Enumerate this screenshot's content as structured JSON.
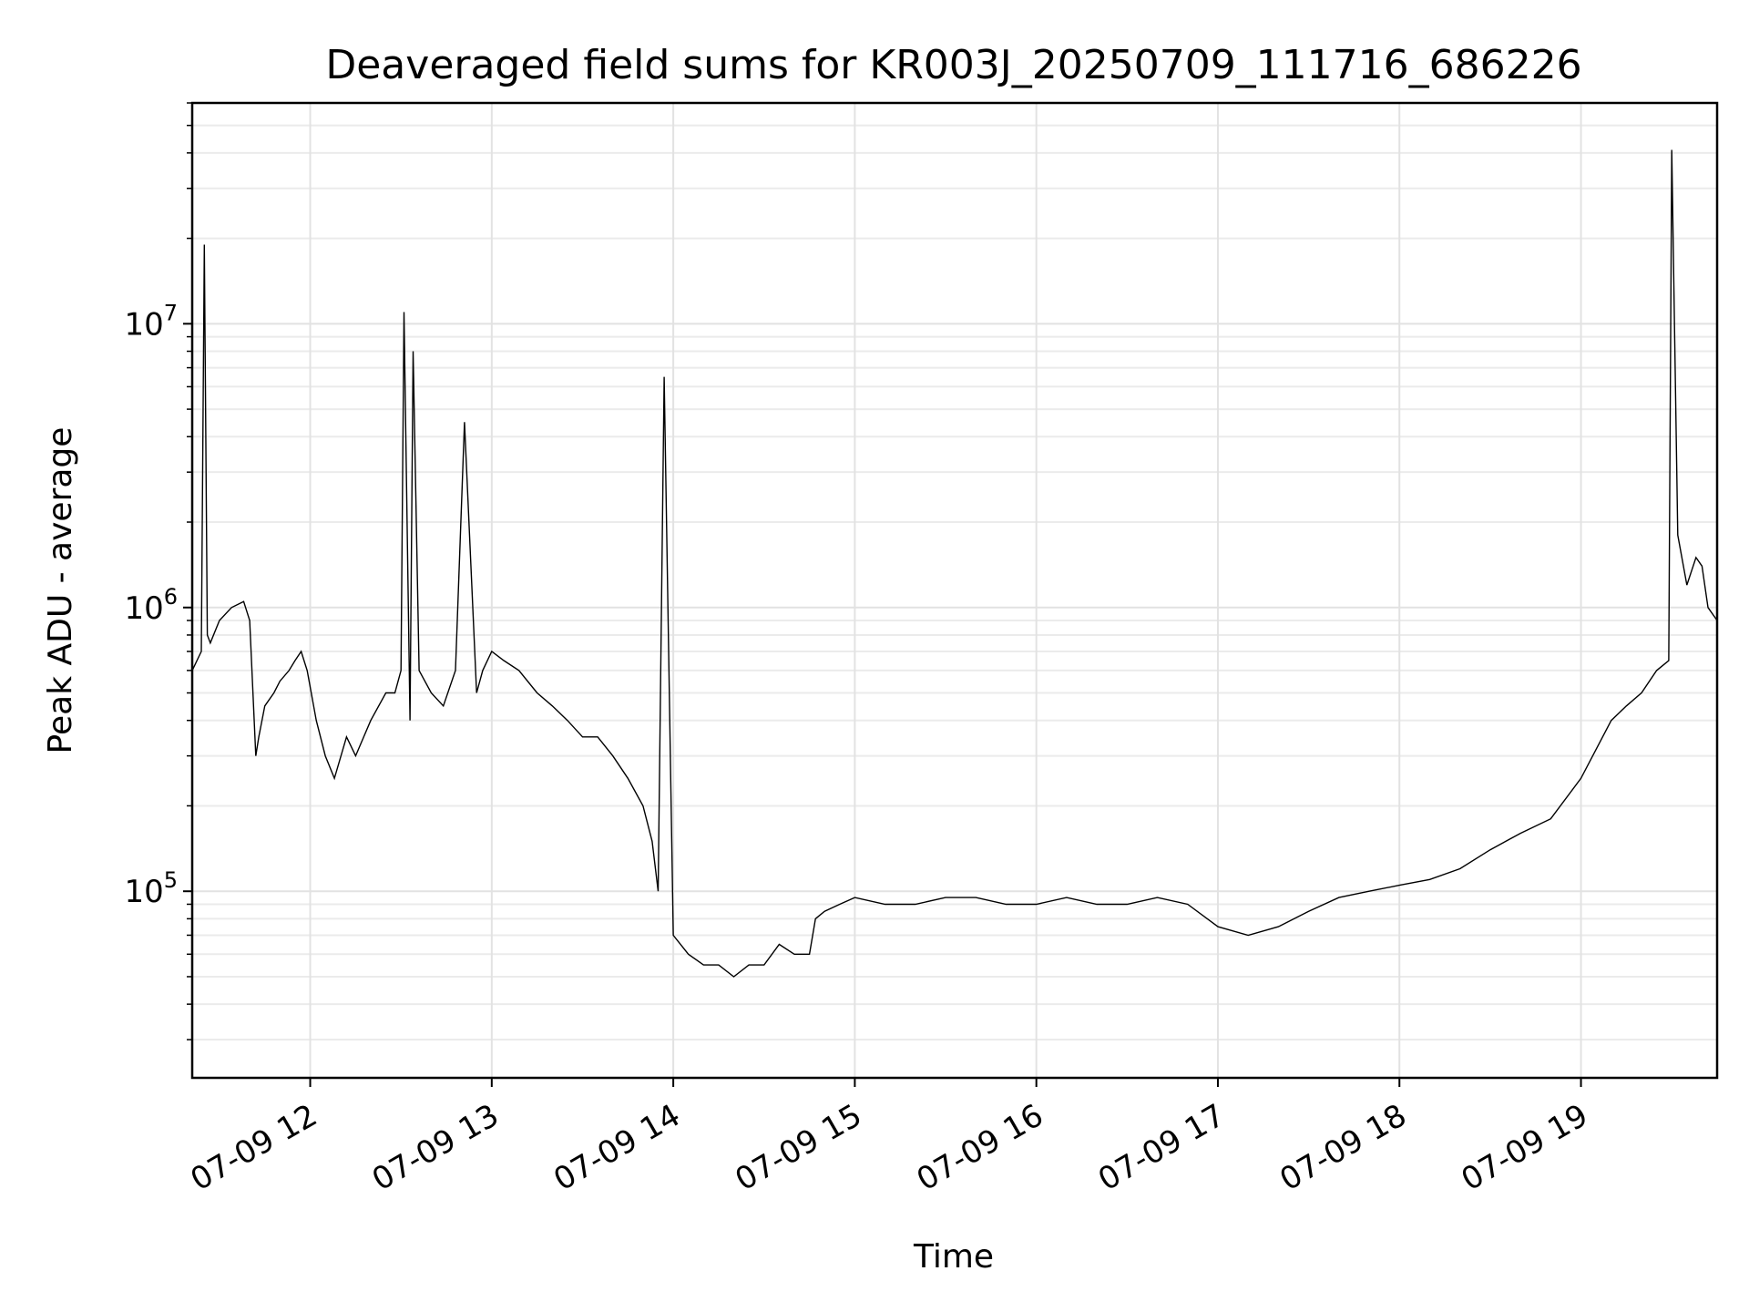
{
  "chart_data": {
    "type": "line",
    "title": "Deaveraged field sums for KR003J_20250709_111716_686226",
    "xlabel": "Time",
    "ylabel": "Peak ADU - average",
    "yscale": "log",
    "xlim": [
      "07-09 11:21",
      "07-09 19:45"
    ],
    "ylim": [
      22000,
      60000000
    ],
    "grid": true,
    "x_ticks": [
      {
        "value": "07-09 12:00",
        "label": "07-09 12"
      },
      {
        "value": "07-09 13:00",
        "label": "07-09 13"
      },
      {
        "value": "07-09 14:00",
        "label": "07-09 14"
      },
      {
        "value": "07-09 15:00",
        "label": "07-09 15"
      },
      {
        "value": "07-09 16:00",
        "label": "07-09 16"
      },
      {
        "value": "07-09 17:00",
        "label": "07-09 17"
      },
      {
        "value": "07-09 18:00",
        "label": "07-09 18"
      },
      {
        "value": "07-09 19:00",
        "label": "07-09 19"
      }
    ],
    "y_ticks": [
      {
        "value": 100000,
        "base": "10",
        "exp": "5"
      },
      {
        "value": 1000000,
        "base": "10",
        "exp": "6"
      },
      {
        "value": 10000000,
        "base": "10",
        "exp": "7"
      }
    ],
    "series_color": "#000000",
    "series": [
      {
        "x": [
          "07-09 11:21",
          "07-09 11:24",
          "07-09 11:25",
          "07-09 11:26",
          "07-09 11:27",
          "07-09 11:30",
          "07-09 11:34",
          "07-09 11:38",
          "07-09 11:40",
          "07-09 11:42",
          "07-09 11:43",
          "07-09 11:45",
          "07-09 11:48",
          "07-09 11:50",
          "07-09 11:53",
          "07-09 11:55",
          "07-09 11:57",
          "07-09 11:59",
          "07-09 12:02",
          "07-09 12:05",
          "07-09 12:08",
          "07-09 12:12",
          "07-09 12:15",
          "07-09 12:20",
          "07-09 12:25",
          "07-09 12:28",
          "07-09 12:30",
          "07-09 12:31",
          "07-09 12:33",
          "07-09 12:34",
          "07-09 12:36",
          "07-09 12:40",
          "07-09 12:44",
          "07-09 12:48",
          "07-09 12:51",
          "07-09 12:55",
          "07-09 12:57",
          "07-09 13:00",
          "07-09 13:04",
          "07-09 13:09",
          "07-09 13:15",
          "07-09 13:20",
          "07-09 13:25",
          "07-09 13:30",
          "07-09 13:35",
          "07-09 13:40",
          "07-09 13:45",
          "07-09 13:50",
          "07-09 13:53",
          "07-09 13:55",
          "07-09 13:57",
          "07-09 14:00",
          "07-09 14:05",
          "07-09 14:10",
          "07-09 14:15",
          "07-09 14:20",
          "07-09 14:25",
          "07-09 14:30",
          "07-09 14:35",
          "07-09 14:40",
          "07-09 14:45",
          "07-09 14:47",
          "07-09 14:50",
          "07-09 14:55",
          "07-09 15:00",
          "07-09 15:10",
          "07-09 15:20",
          "07-09 15:30",
          "07-09 15:40",
          "07-09 15:50",
          "07-09 16:00",
          "07-09 16:10",
          "07-09 16:20",
          "07-09 16:30",
          "07-09 16:40",
          "07-09 16:50",
          "07-09 17:00",
          "07-09 17:10",
          "07-09 17:20",
          "07-09 17:30",
          "07-09 17:40",
          "07-09 17:50",
          "07-09 18:00",
          "07-09 18:10",
          "07-09 18:20",
          "07-09 18:30",
          "07-09 18:40",
          "07-09 18:50",
          "07-09 19:00",
          "07-09 19:10",
          "07-09 19:15",
          "07-09 19:20",
          "07-09 19:25",
          "07-09 19:29",
          "07-09 19:30",
          "07-09 19:32",
          "07-09 19:35",
          "07-09 19:38",
          "07-09 19:40",
          "07-09 19:42",
          "07-09 19:45"
        ],
        "y": [
          600000,
          700000,
          19000000,
          800000,
          750000,
          900000,
          1000000,
          1050000,
          900000,
          300000,
          350000,
          450000,
          500000,
          550000,
          600000,
          650000,
          700000,
          600000,
          400000,
          300000,
          250000,
          350000,
          300000,
          400000,
          500000,
          500000,
          600000,
          11000000,
          400000,
          8000000,
          600000,
          500000,
          450000,
          600000,
          4500000,
          500000,
          600000,
          700000,
          650000,
          600000,
          500000,
          450000,
          400000,
          350000,
          350000,
          300000,
          250000,
          200000,
          150000,
          100000,
          6500000,
          70000,
          60000,
          55000,
          55000,
          50000,
          55000,
          55000,
          65000,
          60000,
          60000,
          80000,
          85000,
          90000,
          95000,
          90000,
          90000,
          95000,
          95000,
          90000,
          90000,
          95000,
          90000,
          90000,
          95000,
          90000,
          75000,
          70000,
          75000,
          85000,
          95000,
          100000,
          105000,
          110000,
          120000,
          140000,
          160000,
          180000,
          250000,
          400000,
          450000,
          500000,
          600000,
          650000,
          41000000,
          1800000,
          1200000,
          1500000,
          1400000,
          1000000,
          900000
        ]
      }
    ]
  }
}
